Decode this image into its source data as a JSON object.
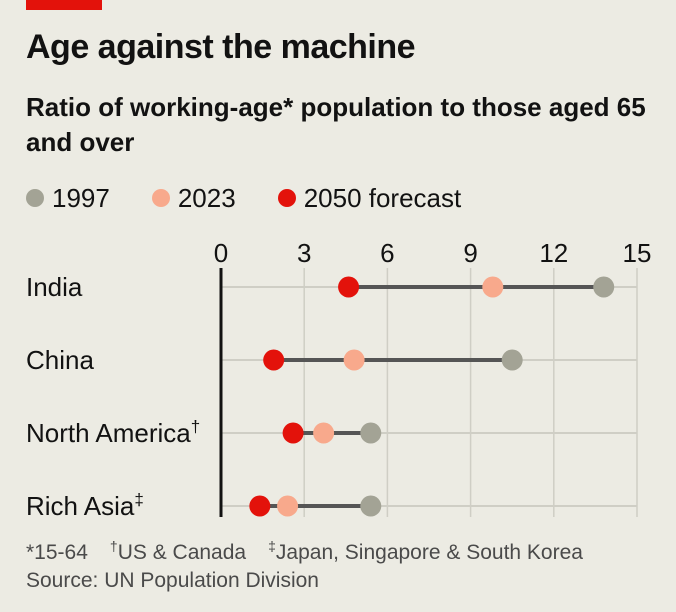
{
  "header": {
    "title": "Age against the machine",
    "subtitle": "Ratio of working-age* population to those aged 65 and over"
  },
  "footnotes": {
    "working_age_marker": "*15-64",
    "dagger_symbol": "†",
    "dagger_text": "US & Canada",
    "double_dagger_symbol": "‡",
    "double_dagger_text": "Japan, Singapore & South Korea",
    "source": "Source: UN Population Division"
  },
  "colors": {
    "accent": "#e3120b",
    "y1997": "#a3a395",
    "y2023": "#f8a98c",
    "y2050": "#e3120b",
    "connector": "#555555",
    "grid": "#cfcec5",
    "background": "#ecebe3"
  },
  "chart_data": {
    "type": "dumbbell",
    "xlim": [
      0,
      15
    ],
    "xticks": [
      "0",
      "3",
      "6",
      "9",
      "12",
      "15"
    ],
    "legend_placement": "top",
    "grid": true,
    "series": [
      {
        "key": "y1997",
        "name": "1997"
      },
      {
        "key": "y2023",
        "name": "2023"
      },
      {
        "key": "y2050",
        "name": "2050 forecast"
      }
    ],
    "categories": [
      {
        "label": "India",
        "marker": "",
        "y1997": 13.8,
        "y2023": 9.8,
        "y2050": 4.6
      },
      {
        "label": "China",
        "marker": "",
        "y1997": 10.5,
        "y2023": 4.8,
        "y2050": 1.9
      },
      {
        "label": "North America",
        "marker": "†",
        "y1997": 5.4,
        "y2023": 3.7,
        "y2050": 2.6
      },
      {
        "label": "Rich Asia",
        "marker": "‡",
        "y1997": 5.4,
        "y2023": 2.4,
        "y2050": 1.4
      }
    ]
  }
}
